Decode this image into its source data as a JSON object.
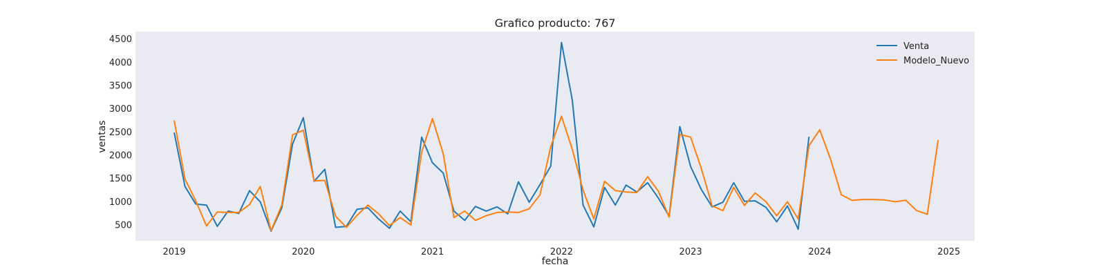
{
  "chart_data": {
    "type": "line",
    "title": "Grafico producto: 767",
    "xlabel": "fecha",
    "ylabel": "ventas",
    "x_ticks": [
      "2019",
      "2020",
      "2021",
      "2022",
      "2023",
      "2024",
      "2025"
    ],
    "y_ticks": [
      500,
      1000,
      1500,
      2000,
      2500,
      3000,
      3500,
      4000,
      4500
    ],
    "xlim": [
      2018.7,
      2025.2
    ],
    "ylim": [
      150,
      4650
    ],
    "grid": false,
    "legend_position": "top-right",
    "colors": {
      "Venta": "#1f77b4",
      "Modelo_Nuevo": "#ff7f0e",
      "background": "#eaeaf2"
    },
    "series": [
      {
        "name": "Venta",
        "start_year": 2019,
        "start_month": 1,
        "values": [
          2480,
          1320,
          940,
          920,
          460,
          790,
          740,
          1230,
          990,
          360,
          860,
          2230,
          2800,
          1430,
          1690,
          440,
          460,
          830,
          860,
          620,
          420,
          790,
          560,
          2380,
          1830,
          1610,
          790,
          590,
          890,
          790,
          880,
          730,
          1420,
          980,
          1360,
          1760,
          4420,
          3180,
          920,
          450,
          1300,
          920,
          1350,
          1200,
          1400,
          1070,
          680,
          2610,
          1750,
          1250,
          880,
          980,
          1400,
          1000,
          1010,
          870,
          560,
          900,
          400,
          2390
        ]
      },
      {
        "name": "Modelo_Nuevo",
        "start_year": 2019,
        "start_month": 1,
        "values": [
          2740,
          1480,
          1010,
          470,
          770,
          760,
          760,
          930,
          1320,
          370,
          920,
          2430,
          2530,
          1440,
          1450,
          680,
          440,
          700,
          920,
          730,
          480,
          650,
          490,
          2060,
          2780,
          2030,
          650,
          790,
          590,
          690,
          760,
          770,
          760,
          840,
          1140,
          2180,
          2830,
          2120,
          1240,
          620,
          1430,
          1230,
          1200,
          1190,
          1530,
          1220,
          660,
          2440,
          2380,
          1700,
          900,
          800,
          1300,
          910,
          1180,
          990,
          690,
          990,
          620,
          2200,
          2540,
          1910,
          1140,
          1020,
          1040,
          1040,
          1030,
          990,
          1020,
          800,
          720,
          2320
        ]
      }
    ]
  }
}
